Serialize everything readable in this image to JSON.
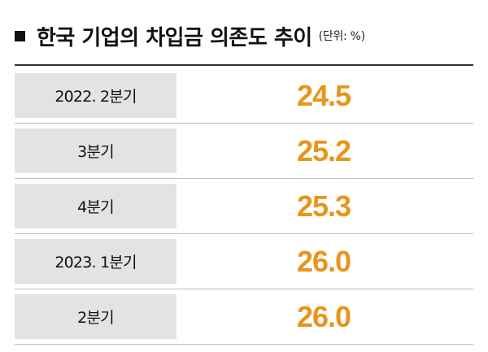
{
  "header": {
    "title": "한국 기업의 차입금 의존도 추이",
    "unit": "(단위: %)"
  },
  "colors": {
    "value": "#e8951c",
    "label_bg": "#e3e3e3",
    "text": "#111111"
  },
  "chart_data": {
    "type": "table",
    "title": "한국 기업의 차입금 의존도 추이",
    "unit": "(단위: %)",
    "categories": [
      "2022. 2분기",
      "3분기",
      "4분기",
      "2023. 1분기",
      "2분기"
    ],
    "values": [
      24.5,
      25.2,
      25.3,
      26.0,
      26.0
    ],
    "value_labels": [
      "24.5",
      "25.2",
      "25.3",
      "26.0",
      "26.0"
    ]
  }
}
